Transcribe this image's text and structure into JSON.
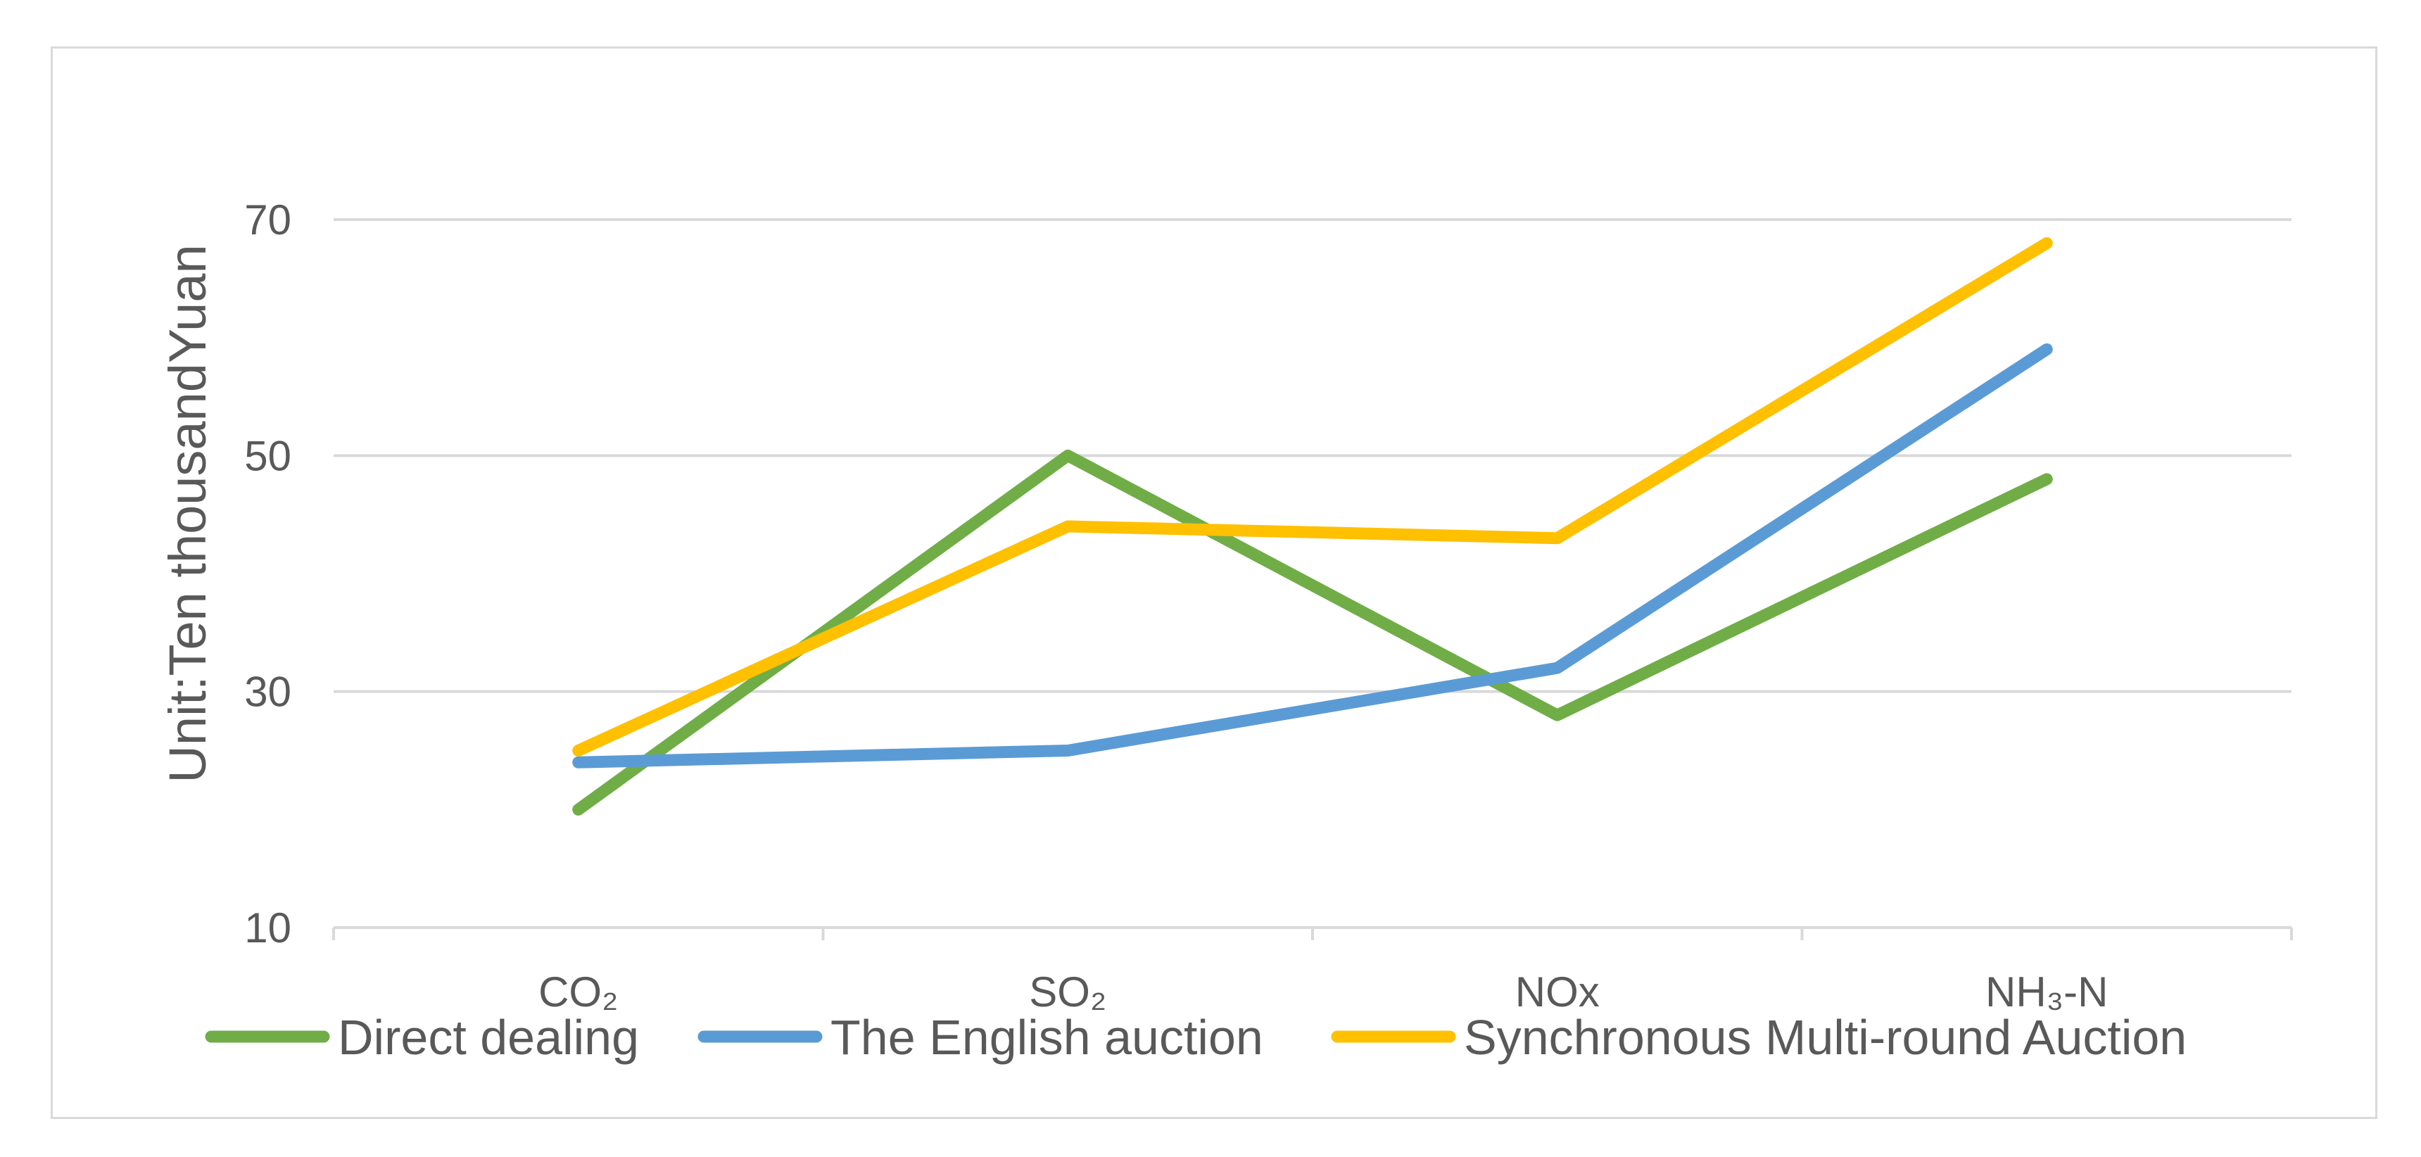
{
  "chart_data": {
    "type": "line",
    "categories": [
      "CO₂",
      "SO₂",
      "NOx",
      "NH₃-N"
    ],
    "ylabel": "Unit:Ten thousandYuan",
    "xlabel": "",
    "title": "",
    "ylim": [
      10,
      70
    ],
    "yticks": [
      10,
      30,
      50,
      70
    ],
    "grid": true,
    "legend_position": "bottom",
    "series": [
      {
        "name": "Direct dealing",
        "color": "#70ad47",
        "values": [
          20,
          50,
          28,
          48
        ]
      },
      {
        "name": "The English auction",
        "color": "#5b9bd5",
        "values": [
          24,
          25,
          32,
          59
        ]
      },
      {
        "name": "Synchronous Multi-round Auction",
        "color": "#ffc000",
        "values": [
          25,
          44,
          43,
          68
        ]
      }
    ]
  }
}
